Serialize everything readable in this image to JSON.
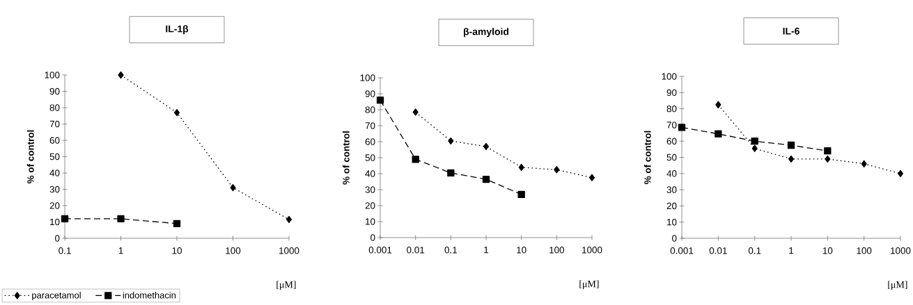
{
  "chart_data": [
    {
      "type": "line",
      "title": "IL-1β",
      "xlabel": "[μM]",
      "ylabel": "% of control",
      "log": "x",
      "xlim": [
        0.1,
        1000
      ],
      "xticks": [
        0.1,
        1,
        10,
        100,
        1000
      ],
      "ylim": [
        0,
        100
      ],
      "yticks": [
        0,
        10,
        20,
        30,
        40,
        50,
        60,
        70,
        80,
        90,
        100
      ],
      "grid": false,
      "legend": "bottom left",
      "series": [
        {
          "name": "paracetamol",
          "color": "#000000",
          "marker": "diamond",
          "line_style": "dotted",
          "x": [
            1,
            10,
            100,
            1000
          ],
          "values": [
            100,
            77,
            31,
            11.5
          ]
        },
        {
          "name": "indomethacin",
          "color": "#000000",
          "marker": "square",
          "line_style": "dashed",
          "x": [
            0.1,
            1,
            10
          ],
          "values": [
            12,
            12,
            9
          ]
        }
      ]
    },
    {
      "type": "line",
      "title": "β-amyloid",
      "xlabel": "[μM]",
      "ylabel": "% of control",
      "log": "x",
      "xlim": [
        0.001,
        1000
      ],
      "xticks": [
        0.001,
        0.01,
        0.1,
        1,
        10,
        100,
        1000
      ],
      "ylim": [
        0,
        100
      ],
      "yticks": [
        0,
        10,
        20,
        30,
        40,
        50,
        60,
        70,
        80,
        90,
        100
      ],
      "grid": false,
      "series": [
        {
          "color": "#000000",
          "marker": "diamond",
          "line_style": "dotted",
          "x": [
            0.01,
            0.1,
            1,
            10,
            100,
            1000
          ],
          "values": [
            78.5,
            60.5,
            57,
            44,
            42.5,
            37.5
          ]
        },
        {
          "color": "#000000",
          "marker": "square",
          "line_style": "dashed",
          "x": [
            0.001,
            0.01,
            0.1,
            1,
            10
          ],
          "values": [
            86,
            49,
            40.5,
            36.5,
            27
          ]
        }
      ]
    },
    {
      "type": "line",
      "title": "IL-6",
      "xlabel": "[μM]",
      "ylabel": "% of control",
      "log": "x",
      "xlim": [
        0.001,
        1000
      ],
      "xticks": [
        0.001,
        0.01,
        0.1,
        1,
        10,
        100,
        1000
      ],
      "ylim": [
        0,
        100
      ],
      "yticks": [
        0,
        10,
        20,
        30,
        40,
        50,
        60,
        70,
        80,
        90,
        100
      ],
      "grid": false,
      "series": [
        {
          "color": "#000000",
          "marker": "diamond",
          "line_style": "dotted",
          "x": [
            0.01,
            0.1,
            1,
            10,
            100,
            1000
          ],
          "values": [
            82.5,
            55.5,
            49,
            49,
            46,
            40
          ]
        },
        {
          "color": "#000000",
          "marker": "square",
          "line_style": "dashed",
          "x": [
            0.001,
            0.01,
            0.1,
            1,
            10
          ],
          "values": [
            68.5,
            64.5,
            60,
            57.5,
            54
          ]
        }
      ]
    }
  ]
}
